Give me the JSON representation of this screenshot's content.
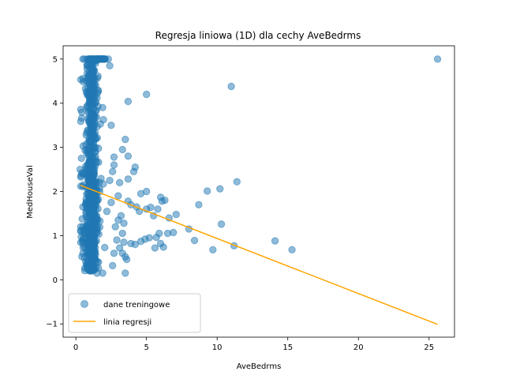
{
  "chart_data": {
    "type": "scatter",
    "title": "Regresja liniowa (1D) dla cechy AveBedrms",
    "xlabel": "AveBedrms",
    "ylabel": "MedHouseVal",
    "xlim": [
      -0.9,
      26.8
    ],
    "ylim": [
      -1.3,
      5.3
    ],
    "xticks": [
      0,
      5,
      10,
      15,
      20,
      25
    ],
    "yticks": [
      -1,
      0,
      1,
      2,
      3,
      4,
      5
    ],
    "xtick_labels": [
      "0",
      "5",
      "10",
      "15",
      "20",
      "25"
    ],
    "ytick_labels": [
      "−1",
      "0",
      "1",
      "2",
      "3",
      "4",
      "5"
    ],
    "grid": false,
    "legend_position": "lower-left",
    "series": [
      {
        "name": "dane treningowe",
        "kind": "scatter",
        "color": "#1f77b4",
        "alpha": 0.5,
        "points": [
          [
            0.5,
            5.0
          ],
          [
            0.6,
            5.0
          ],
          [
            0.8,
            5.0
          ],
          [
            0.9,
            5.0
          ],
          [
            1.0,
            5.0
          ],
          [
            1.1,
            5.0
          ],
          [
            1.2,
            5.0
          ],
          [
            1.3,
            5.0
          ],
          [
            1.4,
            5.0
          ],
          [
            1.5,
            5.0
          ],
          [
            1.6,
            5.0
          ],
          [
            1.8,
            5.0
          ],
          [
            1.9,
            5.0
          ],
          [
            2.0,
            5.0
          ],
          [
            2.3,
            5.0
          ],
          [
            2.4,
            4.85
          ],
          [
            0.8,
            4.85
          ],
          [
            25.6,
            5.0
          ],
          [
            11.0,
            4.38
          ],
          [
            5.0,
            4.2
          ],
          [
            3.7,
            4.04
          ],
          [
            1.9,
            3.9
          ],
          [
            2.5,
            3.5
          ],
          [
            3.5,
            3.18
          ],
          [
            3.3,
            2.95
          ],
          [
            3.7,
            2.8
          ],
          [
            2.7,
            2.78
          ],
          [
            4.2,
            2.55
          ],
          [
            4.1,
            2.45
          ],
          [
            3.7,
            2.28
          ],
          [
            11.4,
            2.22
          ],
          [
            10.2,
            2.06
          ],
          [
            9.3,
            2.01
          ],
          [
            5.0,
            2.0
          ],
          [
            4.6,
            1.95
          ],
          [
            6.0,
            1.87
          ],
          [
            6.3,
            1.8
          ],
          [
            6.1,
            1.78
          ],
          [
            8.7,
            1.7
          ],
          [
            5.8,
            1.6
          ],
          [
            5.3,
            1.64
          ],
          [
            5.0,
            1.6
          ],
          [
            7.1,
            1.48
          ],
          [
            5.5,
            1.45
          ],
          [
            6.6,
            1.4
          ],
          [
            10.3,
            1.26
          ],
          [
            4.3,
            1.65
          ],
          [
            3.9,
            1.7
          ],
          [
            3.7,
            1.78
          ],
          [
            4.5,
            1.55
          ],
          [
            8.0,
            1.15
          ],
          [
            8.4,
            0.89
          ],
          [
            5.9,
            1.05
          ],
          [
            6.5,
            1.05
          ],
          [
            6.9,
            1.07
          ],
          [
            5.7,
            0.96
          ],
          [
            5.2,
            0.95
          ],
          [
            4.9,
            0.92
          ],
          [
            4.6,
            0.87
          ],
          [
            6.0,
            0.82
          ],
          [
            6.2,
            0.74
          ],
          [
            5.6,
            0.72
          ],
          [
            9.7,
            0.68
          ],
          [
            11.2,
            0.77
          ],
          [
            14.1,
            0.88
          ],
          [
            15.3,
            0.68
          ],
          [
            3.4,
            0.85
          ],
          [
            3.9,
            0.82
          ],
          [
            4.2,
            0.8
          ],
          [
            3.5,
            0.52
          ],
          [
            3.6,
            0.46
          ],
          [
            3.3,
            0.6
          ],
          [
            3.1,
            0.72
          ],
          [
            2.6,
            0.32
          ],
          [
            1.9,
            0.15
          ],
          [
            1.5,
            0.15
          ],
          [
            3.5,
            0.15
          ],
          [
            0.4,
            2.75
          ],
          [
            0.3,
            2.5
          ],
          [
            0.6,
            2.4
          ],
          [
            0.55,
            2.15
          ],
          [
            0.5,
            1.65
          ],
          [
            0.45,
            1.38
          ],
          [
            0.5,
            1.2
          ],
          [
            0.55,
            0.95
          ],
          [
            0.5,
            0.6
          ],
          [
            0.6,
            0.75
          ],
          [
            2.8,
            1.2
          ],
          [
            3.0,
            1.35
          ],
          [
            3.2,
            1.45
          ],
          [
            2.9,
            0.9
          ],
          [
            2.7,
            0.6
          ],
          [
            2.5,
            1.75
          ],
          [
            2.4,
            2.25
          ],
          [
            3.0,
            1.9
          ],
          [
            3.1,
            2.2
          ],
          [
            2.6,
            2.45
          ],
          [
            2.7,
            2.6
          ],
          [
            3.3,
            1.05
          ],
          [
            3.4,
            1.28
          ]
        ]
      },
      {
        "name": "linia regresji",
        "kind": "line",
        "color": "#ffa500",
        "points": [
          [
            0.33,
            2.14
          ],
          [
            25.6,
            -1.01
          ]
        ]
      }
    ]
  }
}
